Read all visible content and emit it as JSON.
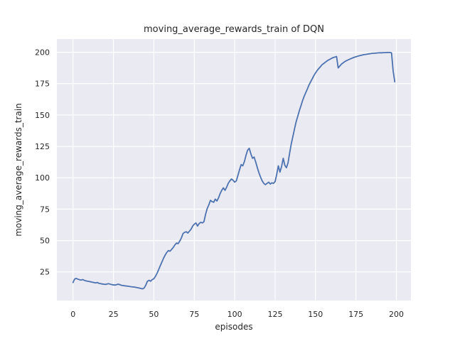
{
  "chart_data": {
    "type": "line",
    "title": "moving_average_rewards_train of DQN",
    "xlabel": "episodes",
    "ylabel": "moving_average_rewards_train",
    "x_ticks": [
      0,
      25,
      50,
      75,
      100,
      125,
      150,
      175,
      200
    ],
    "x_tick_labels": [
      "0",
      "25",
      "50",
      "75",
      "100",
      "125",
      "150",
      "175",
      "200"
    ],
    "y_ticks": [
      25,
      50,
      75,
      100,
      125,
      150,
      175,
      200
    ],
    "y_tick_labels": [
      "25",
      "50",
      "75",
      "100",
      "125",
      "150",
      "175",
      "200"
    ],
    "xlim": [
      -10,
      209
    ],
    "ylim": [
      2.2,
      210.5
    ],
    "grid": true,
    "legend": null,
    "style": "seaborn-darkgrid",
    "colors": {
      "line": "#4c72b0",
      "plot_bg": "#eaeaf2",
      "grid": "#ffffff",
      "text": "#262626",
      "figure_bg": "#ffffff"
    },
    "series": [
      {
        "name": "moving_average_rewards_train",
        "x": [
          0,
          1,
          2,
          3,
          4,
          5,
          6,
          7,
          8,
          10,
          12,
          14,
          15,
          16,
          18,
          20,
          22,
          24,
          26,
          28,
          30,
          32,
          34,
          36,
          38,
          40,
          42,
          43,
          44,
          45,
          46,
          47,
          48,
          49,
          50,
          51,
          52,
          53,
          54,
          55,
          56,
          57,
          58,
          59,
          60,
          61,
          62,
          63,
          64,
          65,
          66,
          67,
          68,
          69,
          70,
          71,
          72,
          73,
          74,
          75,
          76,
          77,
          78,
          79,
          80,
          81,
          82,
          83,
          84,
          85,
          86,
          87,
          88,
          89,
          90,
          91,
          92,
          93,
          94,
          95,
          96,
          97,
          98,
          99,
          100,
          101,
          102,
          103,
          104,
          105,
          106,
          107,
          108,
          109,
          110,
          111,
          112,
          113,
          114,
          115,
          116,
          117,
          118,
          119,
          120,
          121,
          122,
          123,
          124,
          125,
          126,
          127,
          128,
          129,
          130,
          131,
          132,
          133,
          134,
          135,
          136,
          137,
          138,
          139,
          140,
          141,
          142,
          143,
          144,
          145,
          146,
          147,
          148,
          149,
          150,
          151,
          152,
          153,
          154,
          155,
          156,
          157,
          158,
          159,
          160,
          161,
          162,
          163,
          164,
          165,
          166,
          167,
          168,
          169,
          170,
          171,
          172,
          173,
          174,
          175,
          176,
          177,
          178,
          179,
          180,
          181,
          182,
          183,
          184,
          185,
          186,
          187,
          188,
          189,
          190,
          191,
          192,
          193,
          194,
          195,
          196,
          197,
          198,
          199
        ],
        "y": [
          16.5,
          19.3,
          19.8,
          19.2,
          18.8,
          18.5,
          18.9,
          18.2,
          17.8,
          17.3,
          16.8,
          16.2,
          16.6,
          15.9,
          15.4,
          15.0,
          15.6,
          14.8,
          14.5,
          15.2,
          14.3,
          13.9,
          13.6,
          13.2,
          12.9,
          12.4,
          11.8,
          11.5,
          12.2,
          14.5,
          17.5,
          18.3,
          17.6,
          18.9,
          19.5,
          21.5,
          24.0,
          27.0,
          30.0,
          33.0,
          36.0,
          38.5,
          40.5,
          42.0,
          41.5,
          43.0,
          44.5,
          46.5,
          48.0,
          47.5,
          49.5,
          52.0,
          55.5,
          56.5,
          57.0,
          56.0,
          57.5,
          59.0,
          61.5,
          63.0,
          64.0,
          61.5,
          63.5,
          64.5,
          64.0,
          65.0,
          71.0,
          75.5,
          78.5,
          82.0,
          81.0,
          80.5,
          83.0,
          81.5,
          84.0,
          87.5,
          90.0,
          92.0,
          90.0,
          92.5,
          95.5,
          97.5,
          99.0,
          98.0,
          96.5,
          97.5,
          102.0,
          106.5,
          110.5,
          109.5,
          113.0,
          118.0,
          122.0,
          123.5,
          119.0,
          115.5,
          116.5,
          112.5,
          108.0,
          104.0,
          100.5,
          97.5,
          95.5,
          94.5,
          95.5,
          96.5,
          95.0,
          96.0,
          95.5,
          97.0,
          103.0,
          109.5,
          104.5,
          109.0,
          115.5,
          110.0,
          108.0,
          112.0,
          120.0,
          127.0,
          133.0,
          139.0,
          144.5,
          149.0,
          153.5,
          157.5,
          161.5,
          165.0,
          168.0,
          171.0,
          174.0,
          176.5,
          179.0,
          181.5,
          183.5,
          185.5,
          187.0,
          188.5,
          190.0,
          191.0,
          192.0,
          193.0,
          193.8,
          194.5,
          195.2,
          195.8,
          196.2,
          196.6,
          187.5,
          189.0,
          190.5,
          191.5,
          192.5,
          193.2,
          193.8,
          194.4,
          195.0,
          195.5,
          196.0,
          196.4,
          196.8,
          197.2,
          197.5,
          197.8,
          198.1,
          198.3,
          198.5,
          198.7,
          198.9,
          199.1,
          199.2,
          199.3,
          199.4,
          199.5,
          199.6,
          199.6,
          199.7,
          199.7,
          199.8,
          199.8,
          199.8,
          199.5,
          185.0,
          176.5
        ]
      }
    ]
  }
}
